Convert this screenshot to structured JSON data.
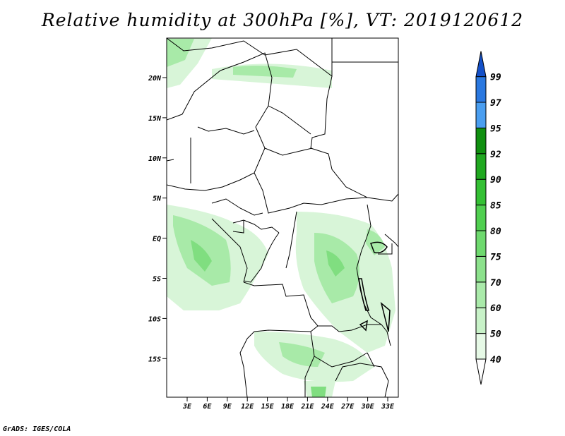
{
  "title": "Relative humidity at 300hPa [%], VT: 2019120612",
  "credit": "GrADS: IGES/COLA",
  "map": {
    "lat_labels": [
      "20N",
      "15N",
      "10N",
      "5N",
      "EQ",
      "5S",
      "10S",
      "15S"
    ],
    "lon_labels": [
      "3E",
      "6E",
      "9E",
      "12E",
      "15E",
      "18E",
      "21E",
      "24E",
      "27E",
      "30E",
      "33E"
    ]
  },
  "colorbar": {
    "levels": [
      "40",
      "50",
      "60",
      "70",
      "75",
      "80",
      "85",
      "90",
      "92",
      "95",
      "97",
      "99"
    ],
    "colors": [
      "#ffffff",
      "#e6f9e6",
      "#c8f2c8",
      "#aaeaaa",
      "#8ce18c",
      "#6ed96e",
      "#50cf50",
      "#34c034",
      "#20a820",
      "#109010",
      "#4a9ef0",
      "#2a78e0",
      "#1450c8"
    ]
  }
}
